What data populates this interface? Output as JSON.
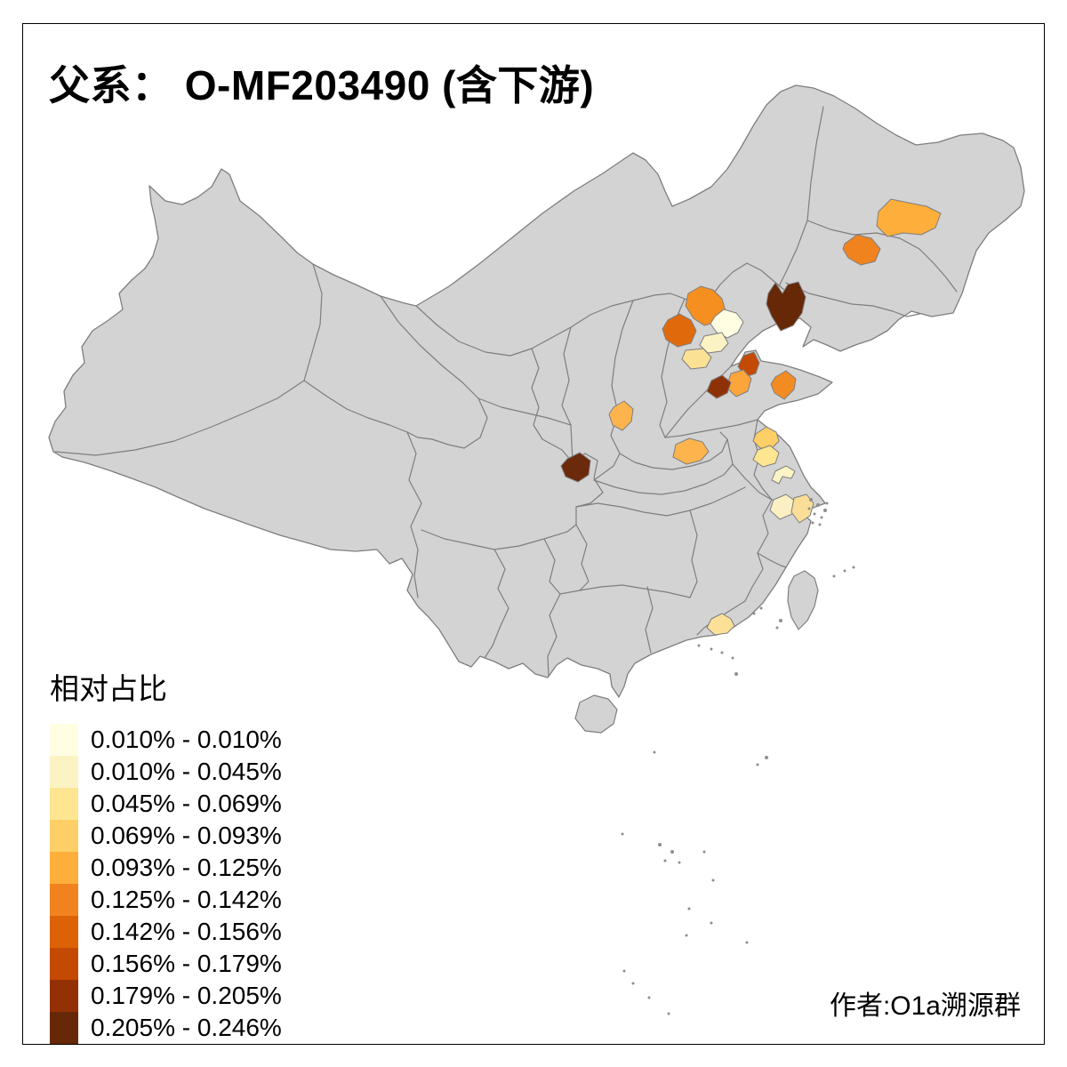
{
  "title": "父系： O-MF203490 (含下游)",
  "attribution": "作者:O1a溯源群",
  "legend": {
    "title": "相对占比",
    "classes": [
      {
        "range": "0.010% - 0.010%",
        "color": "#FFFEE3"
      },
      {
        "range": "0.010% - 0.045%",
        "color": "#FCF3C4"
      },
      {
        "range": "0.045% - 0.069%",
        "color": "#FDE592"
      },
      {
        "range": "0.069% - 0.093%",
        "color": "#FECF66"
      },
      {
        "range": "0.093% - 0.125%",
        "color": "#FDAE3B"
      },
      {
        "range": "0.125% - 0.142%",
        "color": "#F1831F"
      },
      {
        "range": "0.142% - 0.156%",
        "color": "#DD6207"
      },
      {
        "range": "0.156% - 0.179%",
        "color": "#C44903"
      },
      {
        "range": "0.179% - 0.205%",
        "color": "#933105"
      },
      {
        "range": "0.205% - 0.246%",
        "color": "#662807"
      }
    ]
  },
  "map": {
    "land_color": "#D3D3D3",
    "border_color": "#7E7E7E",
    "sea_color": "#FFFFFF",
    "frame_color": "#000000",
    "regions": [
      {
        "name": "harbin-area",
        "range": "0.093% - 0.125%",
        "fill": "#FDAE3B"
      },
      {
        "name": "changchun-area",
        "range": "0.125% - 0.142%",
        "fill": "#F1831F"
      },
      {
        "name": "chaoyang-area",
        "range": "0.205% - 0.246%",
        "fill": "#662807"
      },
      {
        "name": "chengde-area",
        "range": "0.125% - 0.142%",
        "fill": "#F58F1F"
      },
      {
        "name": "zhangjiakou-area",
        "range": "0.142% - 0.156%",
        "fill": "#E06A0B"
      },
      {
        "name": "beijing-area",
        "range": "0.010% - 0.010%",
        "fill": "#FFFEE3"
      },
      {
        "name": "langfang-area",
        "range": "0.010% - 0.045%",
        "fill": "#FCF3C4"
      },
      {
        "name": "baoding-area",
        "range": "0.045% - 0.069%",
        "fill": "#FBE194"
      },
      {
        "name": "linfen-area",
        "range": "0.093% - 0.125%",
        "fill": "#FDB44C"
      },
      {
        "name": "central-henan-area",
        "range": "0.093% - 0.125%",
        "fill": "#FDB44C"
      },
      {
        "name": "northeast-sichuan-area",
        "range": "0.205% - 0.246%",
        "fill": "#6B2A0C"
      },
      {
        "name": "dongying-area",
        "range": "0.156% - 0.179%",
        "fill": "#C44903"
      },
      {
        "name": "zibo-area",
        "range": "0.093% - 0.125%",
        "fill": "#FCA53B"
      },
      {
        "name": "jinan-area",
        "range": "0.179% - 0.205%",
        "fill": "#8F3107"
      },
      {
        "name": "qingdao-area",
        "range": "0.125% - 0.142%",
        "fill": "#F28C22"
      },
      {
        "name": "north-jiangsu-area",
        "range": "0.069% - 0.093%",
        "fill": "#FECF66"
      },
      {
        "name": "huaian-area",
        "range": "0.045% - 0.069%",
        "fill": "#FDE592"
      },
      {
        "name": "central-jiangsu-area",
        "range": "0.010% - 0.045%",
        "fill": "#FDF4C6"
      },
      {
        "name": "north-zhejiang-west-area",
        "range": "0.010% - 0.045%",
        "fill": "#FBEFC4"
      },
      {
        "name": "north-zhejiang-east-area",
        "range": "0.045% - 0.069%",
        "fill": "#FADE97"
      },
      {
        "name": "east-guangdong-area",
        "range": "0.045% - 0.069%",
        "fill": "#FCE098"
      }
    ]
  },
  "chart_data": {
    "type": "heatmap",
    "subtype": "choropleth-map-of-china-prefectures",
    "title": "父系： O-MF203490 (含下游)",
    "legend_title": "相对占比",
    "legend_position": "bottom-left",
    "class_breaks_percent": [
      0.01,
      0.01,
      0.045,
      0.069,
      0.093,
      0.125,
      0.142,
      0.156,
      0.179,
      0.205,
      0.246
    ],
    "regions": [
      {
        "name": "harbin-area",
        "value_range": "0.093%-0.125%"
      },
      {
        "name": "changchun-area",
        "value_range": "0.125%-0.142%"
      },
      {
        "name": "chaoyang-area",
        "value_range": "0.205%-0.246%"
      },
      {
        "name": "chengde-area",
        "value_range": "0.125%-0.142%"
      },
      {
        "name": "zhangjiakou-area",
        "value_range": "0.142%-0.156%"
      },
      {
        "name": "beijing-area",
        "value_range": "0.010%"
      },
      {
        "name": "langfang-area",
        "value_range": "0.010%-0.045%"
      },
      {
        "name": "baoding-area",
        "value_range": "0.045%-0.069%"
      },
      {
        "name": "linfen-area",
        "value_range": "0.093%-0.125%"
      },
      {
        "name": "central-henan-area",
        "value_range": "0.093%-0.125%"
      },
      {
        "name": "northeast-sichuan-area",
        "value_range": "0.205%-0.246%"
      },
      {
        "name": "dongying-area",
        "value_range": "0.156%-0.179%"
      },
      {
        "name": "zibo-area",
        "value_range": "0.093%-0.125%"
      },
      {
        "name": "jinan-area",
        "value_range": "0.179%-0.205%"
      },
      {
        "name": "qingdao-area",
        "value_range": "0.125%-0.142%"
      },
      {
        "name": "north-jiangsu-area",
        "value_range": "0.069%-0.093%"
      },
      {
        "name": "huaian-area",
        "value_range": "0.045%-0.069%"
      },
      {
        "name": "central-jiangsu-area",
        "value_range": "0.010%-0.045%"
      },
      {
        "name": "north-zhejiang-west-area",
        "value_range": "0.010%-0.045%"
      },
      {
        "name": "north-zhejiang-east-area",
        "value_range": "0.045%-0.069%"
      },
      {
        "name": "east-guangdong-area",
        "value_range": "0.045%-0.069%"
      }
    ]
  }
}
